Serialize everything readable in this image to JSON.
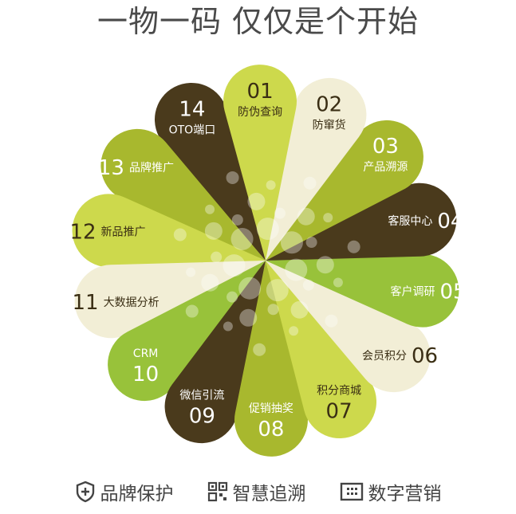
{
  "title": "一物一码 仅仅是个开始",
  "petals": [
    {
      "num": "01",
      "label": "防伪查询",
      "color": "#cdd94c",
      "text": "#3a2e14"
    },
    {
      "num": "02",
      "label": "防窜货",
      "color": "#f2eed6",
      "text": "#3a2e14"
    },
    {
      "num": "03",
      "label": "产品溯源",
      "color": "#a8b82e",
      "text": "#ffffff"
    },
    {
      "num": "04",
      "label": "客服中心",
      "color": "#4a3a1c",
      "text": "#ffffff"
    },
    {
      "num": "05",
      "label": "客户调研",
      "color": "#98c23a",
      "text": "#ffffff"
    },
    {
      "num": "06",
      "label": "会员积分",
      "color": "#f2eed6",
      "text": "#3a2e14"
    },
    {
      "num": "07",
      "label": "积分商城",
      "color": "#cdd94c",
      "text": "#3a2e14"
    },
    {
      "num": "08",
      "label": "促销抽奖",
      "color": "#a8b82e",
      "text": "#ffffff"
    },
    {
      "num": "09",
      "label": "微信引流",
      "color": "#4a3a1c",
      "text": "#ffffff"
    },
    {
      "num": "10",
      "label": "CRM",
      "color": "#98c23a",
      "text": "#ffffff"
    },
    {
      "num": "11",
      "label": "大数据分析",
      "color": "#f2eed6",
      "text": "#3a2e14"
    },
    {
      "num": "12",
      "label": "新品推广",
      "color": "#cdd94c",
      "text": "#3a2e14"
    },
    {
      "num": "13",
      "label": "品牌推广",
      "color": "#a8b82e",
      "text": "#ffffff"
    },
    {
      "num": "14",
      "label": "OTO端口",
      "color": "#4a3a1c",
      "text": "#ffffff"
    }
  ],
  "features": [
    {
      "icon": "shield-plus-icon",
      "label": "品牌保护"
    },
    {
      "icon": "qr-code-icon",
      "label": "智慧追溯"
    },
    {
      "icon": "keypad-icon",
      "label": "数字营销"
    }
  ]
}
